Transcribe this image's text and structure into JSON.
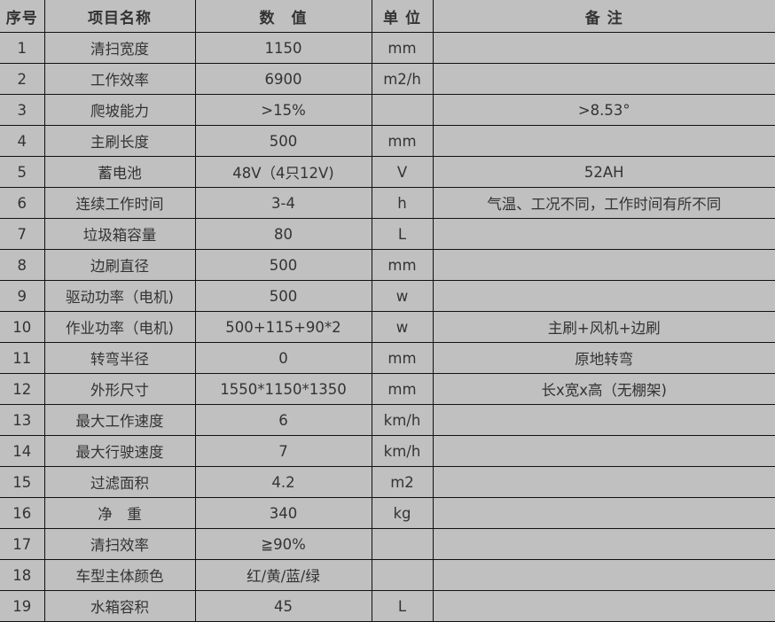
{
  "headers": [
    "序号",
    "项目名称",
    "数　值",
    "单 位",
    "备  注"
  ],
  "rows": [
    [
      "1",
      "清扫宽度",
      "1150",
      "mm",
      ""
    ],
    [
      "2",
      "工作效率",
      "6900",
      "m2/h",
      ""
    ],
    [
      "3",
      "爬坡能力",
      ">15%",
      "",
      ">8.53°"
    ],
    [
      "4",
      "主刷长度",
      "500",
      "mm",
      ""
    ],
    [
      "5",
      "蓄电池",
      "48V（4只12V)",
      "V",
      "52AH"
    ],
    [
      "6",
      "连续工作时间",
      "3-4",
      "h",
      "气温、工况不同，工作时间有所不同"
    ],
    [
      "7",
      "垃圾箱容量",
      "80",
      "L",
      ""
    ],
    [
      "8",
      "边刷直径",
      "500",
      "mm",
      ""
    ],
    [
      "9",
      "驱动功率（电机)",
      "500",
      "w",
      ""
    ],
    [
      "10",
      "作业功率（电机)",
      "500+115+90*2",
      "w",
      "主刷+风机+边刷"
    ],
    [
      "11",
      "转弯半径",
      "0",
      "mm",
      "原地转弯"
    ],
    [
      "12",
      "外形尺寸",
      "1550*1150*1350",
      "mm",
      "长x宽x高（无棚架)"
    ],
    [
      "13",
      "最大工作速度",
      "6",
      "km/h",
      ""
    ],
    [
      "14",
      "最大行驶速度",
      "7",
      "km/h",
      ""
    ],
    [
      "15",
      "过滤面积",
      "4.2",
      "m2",
      ""
    ],
    [
      "16",
      "净　重",
      "340",
      "kg",
      ""
    ],
    [
      "17",
      "清扫效率",
      "≧90%",
      "",
      ""
    ],
    [
      "18",
      "车型主体颜色",
      "红/黄/蓝/绿",
      "",
      ""
    ],
    [
      "19",
      "水箱容积",
      "45",
      "L",
      ""
    ]
  ]
}
